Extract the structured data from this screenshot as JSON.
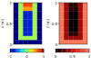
{
  "chart_data": [
    {
      "type": "heatmap",
      "ylabel": "z (m)",
      "ylim": [
        0,
        1
      ],
      "yticks": [
        0,
        0.5,
        1
      ],
      "tick_labels": "y",
      "cells": [
        [
          -1,
          0.1,
          0.7,
          0.7,
          0.1,
          -1
        ],
        [
          -1,
          0.1,
          0.5,
          0.5,
          0.1,
          -1
        ],
        [
          -1,
          0.1,
          -0.8,
          -0.8,
          0.1,
          -1
        ],
        [
          -1,
          0.1,
          -0.8,
          -0.8,
          0.1,
          -1
        ],
        [
          -1,
          0.1,
          -0.8,
          -0.8,
          0.1,
          -1
        ],
        [
          -1,
          0.1,
          -0.8,
          -0.8,
          0.1,
          -1
        ],
        [
          -1,
          0.1,
          -0.8,
          -0.8,
          0.1,
          -1
        ],
        [
          -1,
          0.1,
          -0.8,
          -0.8,
          0.1,
          -1
        ],
        [
          -1,
          0.1,
          0.1,
          0.1,
          0.1,
          -1
        ],
        [
          -1,
          -1,
          -1,
          -1,
          -1,
          -1
        ]
      ],
      "colorbar_range": [
        -1,
        1
      ],
      "colorbar_ticks": [
        -1,
        0,
        1
      ]
    },
    {
      "type": "heatmap",
      "ylabel": "z (m)",
      "ylim": [
        0,
        1
      ],
      "yticks": [
        0,
        0.5,
        1
      ],
      "tick_labels": "y",
      "cells": [
        [
          1,
          0.4,
          0.1,
          0.1,
          0.4,
          1
        ],
        [
          1,
          0.4,
          0.1,
          0.1,
          0.4,
          1
        ],
        [
          1,
          0.4,
          0,
          0,
          0.4,
          1
        ],
        [
          1,
          0.4,
          0,
          0,
          0.4,
          1
        ],
        [
          1,
          0.4,
          0,
          0,
          0.4,
          1
        ],
        [
          1,
          0.4,
          0,
          0,
          0.4,
          1
        ],
        [
          1,
          0.4,
          0,
          0,
          0.4,
          1
        ],
        [
          1,
          0.4,
          0.1,
          0.1,
          0.4,
          1
        ],
        [
          1,
          0.4,
          0.4,
          0.4,
          0.4,
          1
        ],
        [
          1,
          1,
          1,
          1,
          1,
          1
        ]
      ],
      "colorbar_range": [
        0,
        1
      ],
      "colorbar_ticks": [
        0,
        0.5,
        1
      ]
    }
  ]
}
